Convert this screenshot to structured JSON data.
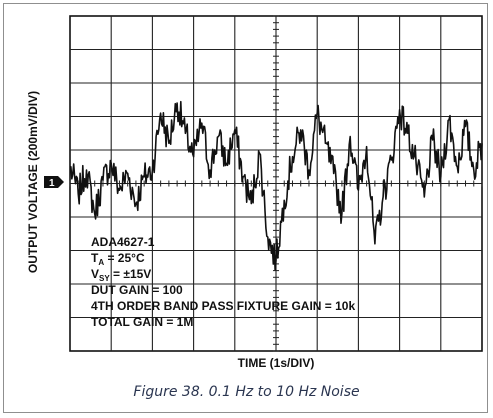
{
  "chart_data": {
    "type": "line",
    "title": "",
    "xlabel": "TIME (1s/DIV)",
    "ylabel": "OUTPUT VOLTAGE (200mV/DIV)",
    "x_divisions": 10,
    "y_divisions": 10,
    "xlim": [
      0,
      10
    ],
    "ylim": [
      -5,
      5
    ],
    "grid": true,
    "reference_marker": "1",
    "annotations": [
      "ADA4627-1",
      "T_A = 25°C",
      "V_SY = ±15V",
      "DUT GAIN = 100",
      "4TH ORDER BAND PASS FIXTURE GAIN = 10k",
      "TOTAL GAIN = 1M"
    ],
    "series": [
      {
        "x": [
          0,
          0.2,
          0.4,
          0.6,
          0.8,
          1.0,
          1.2,
          1.4,
          1.6,
          1.8,
          2.0,
          2.2,
          2.4,
          2.6,
          2.8,
          3.0,
          3.2,
          3.4,
          3.6,
          3.8,
          4.0,
          4.2,
          4.4,
          4.6,
          4.8,
          5.0,
          5.2,
          5.4,
          5.6,
          5.8,
          6.0,
          6.2,
          6.4,
          6.6,
          6.8,
          7.0,
          7.2,
          7.4,
          7.6,
          7.8,
          8.0,
          8.2,
          8.4,
          8.6,
          8.8,
          9.0,
          9.2,
          9.4,
          9.6,
          9.8,
          10.0
        ],
        "y": [
          0.5,
          -0.3,
          0.4,
          -0.9,
          0.1,
          0.6,
          -0.2,
          0.3,
          -0.6,
          0.2,
          0.4,
          2.1,
          1.2,
          2.4,
          1.5,
          0.8,
          1.8,
          0.4,
          1.4,
          0.6,
          1.6,
          0.2,
          -0.6,
          0.9,
          -1.6,
          -2.3,
          -0.5,
          0.8,
          1.6,
          0.4,
          2.1,
          1.2,
          0.3,
          -0.9,
          1.4,
          -0.2,
          1.1,
          -1.8,
          -0.4,
          0.7,
          2.2,
          1.5,
          0.6,
          -0.4,
          1.3,
          0.2,
          1.9,
          0.5,
          1.7,
          0.4,
          1.2
        ]
      }
    ]
  },
  "caption": "Figure 38. 0.1 Hz to 10 Hz Noise"
}
